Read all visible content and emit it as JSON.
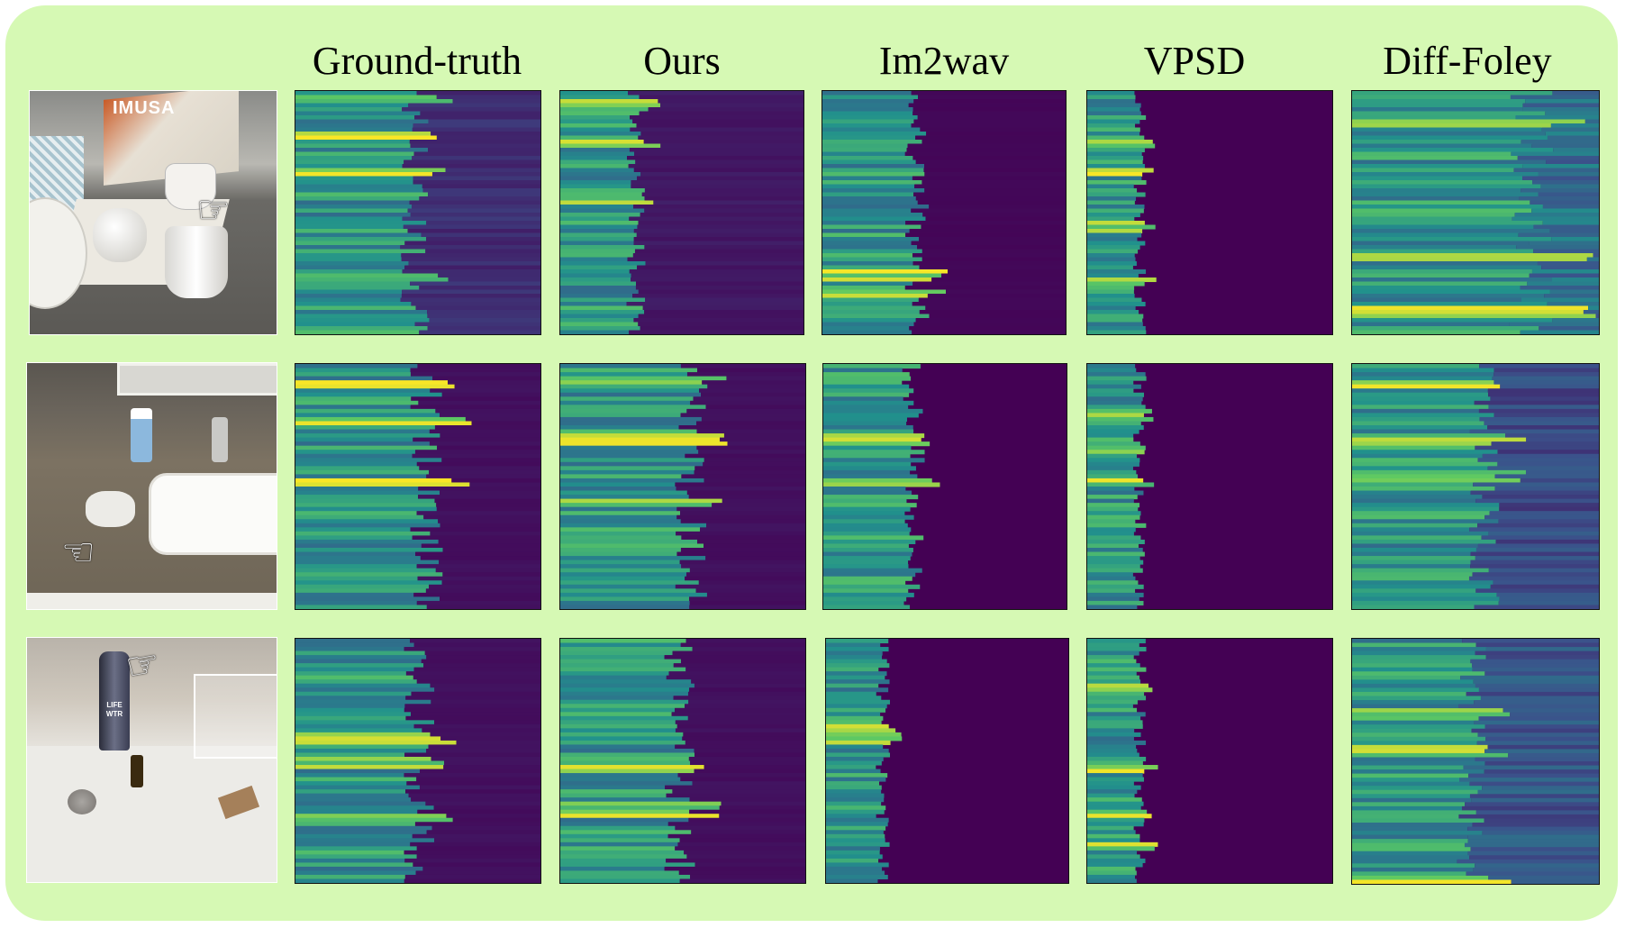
{
  "figure": {
    "columns": [
      {
        "key": "gt",
        "label": "Ground-truth"
      },
      {
        "key": "ours",
        "label": "Ours"
      },
      {
        "key": "im2wav",
        "label": "Im2wav"
      },
      {
        "key": "vpsd",
        "label": "VPSD"
      },
      {
        "key": "difffoley",
        "label": "Diff-Foley"
      }
    ],
    "rows": [
      {
        "scene": "kitchen-counter-mug",
        "scene_text": "IMUSA",
        "spectra": {
          "gt": {
            "fade": 0.5,
            "floor": 0.15,
            "lines": [
              0.03,
              0.18,
              0.32,
              0.76
            ]
          },
          "ours": {
            "fade": 0.32,
            "floor": 0.08,
            "lines": [
              0.05,
              0.21,
              0.44
            ]
          },
          "im2wav": {
            "fade": 0.4,
            "floor": 0.02,
            "lines": [
              0.75,
              0.82
            ]
          },
          "vpsd": {
            "fade": 0.22,
            "floor": 0.0,
            "lines": [
              0.2,
              0.33,
              0.55,
              0.77
            ]
          },
          "difffoley": {
            "fade": 0.75,
            "floor": 0.4,
            "lines": [
              0.12,
              0.68,
              0.9
            ]
          }
        }
      },
      {
        "scene": "bathroom-sink",
        "scene_text": "",
        "spectra": {
          "gt": {
            "fade": 0.55,
            "floor": 0.05,
            "lines": [
              0.08,
              0.23,
              0.47
            ]
          },
          "ours": {
            "fade": 0.55,
            "floor": 0.05,
            "lines": [
              0.06,
              0.3,
              0.56
            ]
          },
          "im2wav": {
            "fade": 0.38,
            "floor": 0.0,
            "lines": [
              0.3,
              0.48
            ]
          },
          "vpsd": {
            "fade": 0.22,
            "floor": 0.0,
            "lines": [
              0.2,
              0.34,
              0.48
            ]
          },
          "difffoley": {
            "fade": 0.55,
            "floor": 0.25,
            "lines": [
              0.07,
              0.3,
              0.45
            ]
          }
        }
      },
      {
        "scene": "desk-water-bottle",
        "scene_text": "LIFE WTR",
        "spectra": {
          "gt": {
            "fade": 0.52,
            "floor": 0.05,
            "lines": [
              0.4,
              0.5,
              0.72
            ]
          },
          "ours": {
            "fade": 0.5,
            "floor": 0.05,
            "lines": [
              0.52,
              0.67,
              0.71
            ]
          },
          "im2wav": {
            "fade": 0.24,
            "floor": 0.0,
            "lines": [
              0.36,
              0.4
            ]
          },
          "vpsd": {
            "fade": 0.22,
            "floor": 0.0,
            "lines": [
              0.2,
              0.53,
              0.71,
              0.84
            ]
          },
          "difffoley": {
            "fade": 0.5,
            "floor": 0.3,
            "lines": [
              0.3,
              0.45,
              0.98
            ]
          }
        }
      }
    ]
  }
}
